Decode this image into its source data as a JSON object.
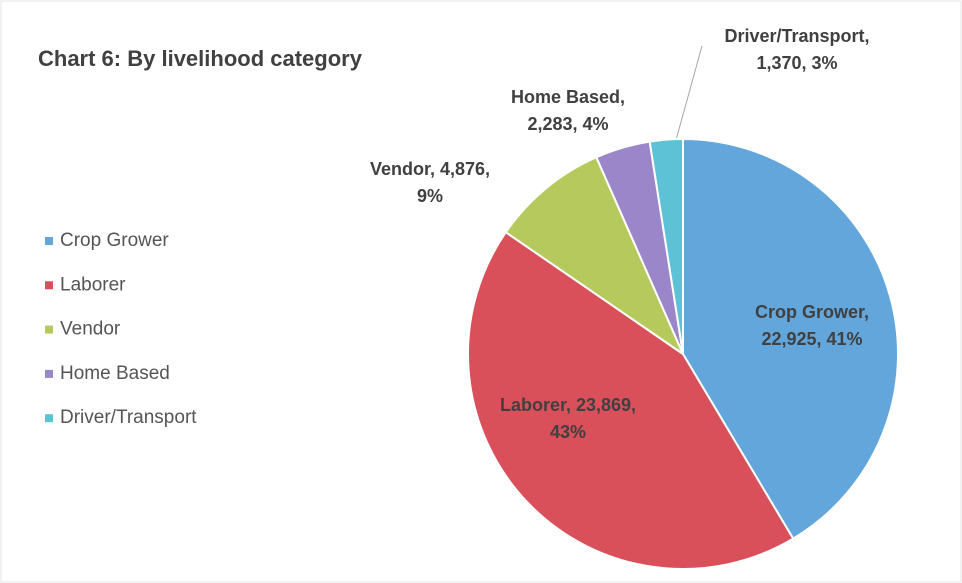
{
  "chart_data": {
    "type": "pie",
    "title": "Chart 6: By livelihood category",
    "categories": [
      "Crop Grower",
      "Laborer",
      "Vendor",
      "Home Based",
      "Driver/Transport"
    ],
    "values": [
      22925,
      23869,
      4876,
      2283,
      1370
    ],
    "value_labels": [
      [
        "Crop Grower,",
        "22,925, 41%"
      ],
      [
        "Laborer, 23,869,",
        "43%"
      ],
      [
        "Vendor, 4,876,",
        "9%"
      ],
      [
        "Home Based,",
        "2,283, 4%"
      ],
      [
        "Driver/Transport,",
        "1,370, 3%"
      ]
    ],
    "colors": [
      "#62a6dc",
      "#d9505b",
      "#b6c95c",
      "#9a86c9",
      "#5ec2d6"
    ],
    "legend": "left"
  }
}
